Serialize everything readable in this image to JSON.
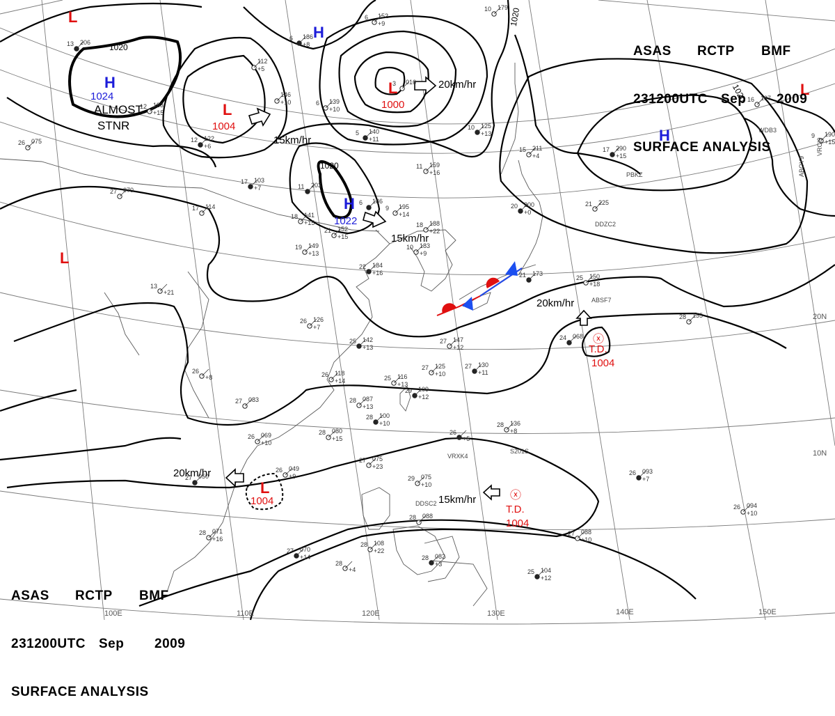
{
  "header": {
    "line1": [
      "ASAS",
      "RCTP",
      "BMF"
    ],
    "line2": [
      "231200UTC",
      "Sep",
      "2009"
    ],
    "line3": "SURFACE ANALYSIS"
  },
  "colors": {
    "high": "#1c1cd9",
    "low": "#e01010",
    "td": "#e01010",
    "isobar": "#000000",
    "graticule": "#777777",
    "coast": "#555555",
    "cold_front": "#1c4ff0",
    "warm_front": "#e01010"
  },
  "pressure_centers": [
    {
      "type": "L",
      "value": ""
    },
    {
      "type": "H",
      "value": "1024",
      "note": "ALMOST\nSTNR"
    },
    {
      "type": "H",
      "value": ""
    },
    {
      "type": "L",
      "value": "1004"
    },
    {
      "type": "L",
      "value": "1000"
    },
    {
      "type": "H",
      "value": "1022"
    },
    {
      "type": "H",
      "value": ""
    },
    {
      "type": "L",
      "value": ""
    },
    {
      "type": "L",
      "value": ""
    },
    {
      "type": "L",
      "value": "1004"
    }
  ],
  "tropical_depressions": [
    {
      "label": "T.D.",
      "value": "1004"
    },
    {
      "label": "T.D.",
      "value": "1004"
    }
  ],
  "isobar_labels": [
    "1020",
    "1020",
    "1020",
    "1020"
  ],
  "movements": [
    {
      "speed": "20km/hr",
      "direction_icon": "arrow-right-icon"
    },
    {
      "speed": "15km/hr",
      "direction_icon": "arrow-right-icon"
    },
    {
      "speed": "15km/hr",
      "direction_icon": "arrow-right-icon"
    },
    {
      "speed": "20km/hr",
      "direction_icon": "arrow-up-icon"
    },
    {
      "speed": "20km/hr",
      "direction_icon": "arrow-left-icon"
    },
    {
      "speed": "15km/hr",
      "direction_icon": "arrow-left-icon"
    }
  ],
  "longitude_labels": [
    "100E",
    "110E",
    "120E",
    "130E",
    "140E",
    "150E"
  ],
  "latitude_labels": [
    "20N",
    "10N"
  ],
  "ship_ids": [
    "WDB3",
    "VRCI9",
    "ABOY9",
    "PBKZ",
    "DDZC2",
    "ABSF7",
    "VRXK4",
    "DDSC2",
    "S201S"
  ],
  "station_plots": [
    {
      "t": "13",
      "p": "206",
      "d": ""
    },
    {
      "t": "12",
      "p": "183",
      "d": "+15"
    },
    {
      "t": "26",
      "p": "075",
      "d": ""
    },
    {
      "t": "12",
      "p": "122",
      "d": "+6"
    },
    {
      "t": "",
      "p": "112",
      "d": "+5"
    },
    {
      "t": "",
      "p": "146",
      "d": "+10"
    },
    {
      "t": "6",
      "p": "186",
      "d": "+8"
    },
    {
      "t": "6",
      "p": "152",
      "d": "+9"
    },
    {
      "t": "6",
      "p": "139",
      "d": "+10"
    },
    {
      "t": "5",
      "p": "140",
      "d": "+11"
    },
    {
      "t": "3",
      "p": "016",
      "d": ""
    },
    {
      "t": "11",
      "p": "159",
      "d": "+16"
    },
    {
      "t": "10",
      "p": "125",
      "d": "+13"
    },
    {
      "t": "15",
      "p": "211",
      "d": "+4"
    },
    {
      "t": "10",
      "p": "179",
      "d": ""
    },
    {
      "t": "17",
      "p": "290",
      "d": "+15"
    },
    {
      "t": "16",
      "p": "197",
      "d": ""
    },
    {
      "t": "9",
      "p": "190",
      "d": "+15"
    },
    {
      "t": "17",
      "p": "103",
      "d": "+7"
    },
    {
      "t": "27",
      "p": "070",
      "d": ""
    },
    {
      "t": "17",
      "p": "114",
      "d": ""
    },
    {
      "t": "11",
      "p": "203",
      "d": ""
    },
    {
      "t": "18",
      "p": "141",
      "d": "+15"
    },
    {
      "t": "21",
      "p": "152",
      "d": "+15"
    },
    {
      "t": "6",
      "p": "186",
      "d": ""
    },
    {
      "t": "9",
      "p": "195",
      "d": "+14"
    },
    {
      "t": "18",
      "p": "188",
      "d": "+22"
    },
    {
      "t": "20",
      "p": "200",
      "d": "+0"
    },
    {
      "t": "21",
      "p": "225",
      "d": ""
    },
    {
      "t": "19",
      "p": "149",
      "d": "+13"
    },
    {
      "t": "22",
      "p": "184",
      "d": "+16"
    },
    {
      "t": "10",
      "p": "183",
      "d": "+9"
    },
    {
      "t": "13",
      "p": "",
      "d": "+21"
    },
    {
      "t": "21",
      "p": "173",
      "d": ""
    },
    {
      "t": "25",
      "p": "150",
      "d": "+18"
    },
    {
      "t": "26",
      "p": "126",
      "d": "+7"
    },
    {
      "t": "25",
      "p": "142",
      "d": "+13"
    },
    {
      "t": "27",
      "p": "147",
      "d": "+12"
    },
    {
      "t": "28",
      "p": "155",
      "d": ""
    },
    {
      "t": "24",
      "p": "068",
      "d": ""
    },
    {
      "t": "26",
      "p": "118",
      "d": "+14"
    },
    {
      "t": "27",
      "p": "125",
      "d": "+10"
    },
    {
      "t": "27",
      "p": "130",
      "d": "+11"
    },
    {
      "t": "26",
      "p": "",
      "d": "+8"
    },
    {
      "t": "25",
      "p": "116",
      "d": "+13"
    },
    {
      "t": "29",
      "p": "109",
      "d": "+12"
    },
    {
      "t": "27",
      "p": "083",
      "d": ""
    },
    {
      "t": "28",
      "p": "087",
      "d": "+13"
    },
    {
      "t": "28",
      "p": "100",
      "d": "+10"
    },
    {
      "t": "26",
      "p": "069",
      "d": "+10"
    },
    {
      "t": "28",
      "p": "080",
      "d": "+15"
    },
    {
      "t": "26",
      "p": "",
      "d": "+5"
    },
    {
      "t": "28",
      "p": "136",
      "d": "+8"
    },
    {
      "t": "26",
      "p": "049",
      "d": "+9"
    },
    {
      "t": "27",
      "p": "050",
      "d": ""
    },
    {
      "t": "27",
      "p": "075",
      "d": "+23"
    },
    {
      "t": "29",
      "p": "075",
      "d": "+10"
    },
    {
      "t": "26",
      "p": "093",
      "d": "+7"
    },
    {
      "t": "26",
      "p": "094",
      "d": "+10"
    },
    {
      "t": "28",
      "p": "071",
      "d": "+16"
    },
    {
      "t": "27",
      "p": "070",
      "d": "+14"
    },
    {
      "t": "28",
      "p": "108",
      "d": "+22"
    },
    {
      "t": "28",
      "p": "088",
      "d": ""
    },
    {
      "t": "28",
      "p": "082",
      "d": "+3"
    },
    {
      "t": "28",
      "p": "",
      "d": "+4"
    },
    {
      "t": "27",
      "p": "088",
      "d": "+10"
    },
    {
      "t": "25",
      "p": "104",
      "d": "+12"
    }
  ]
}
